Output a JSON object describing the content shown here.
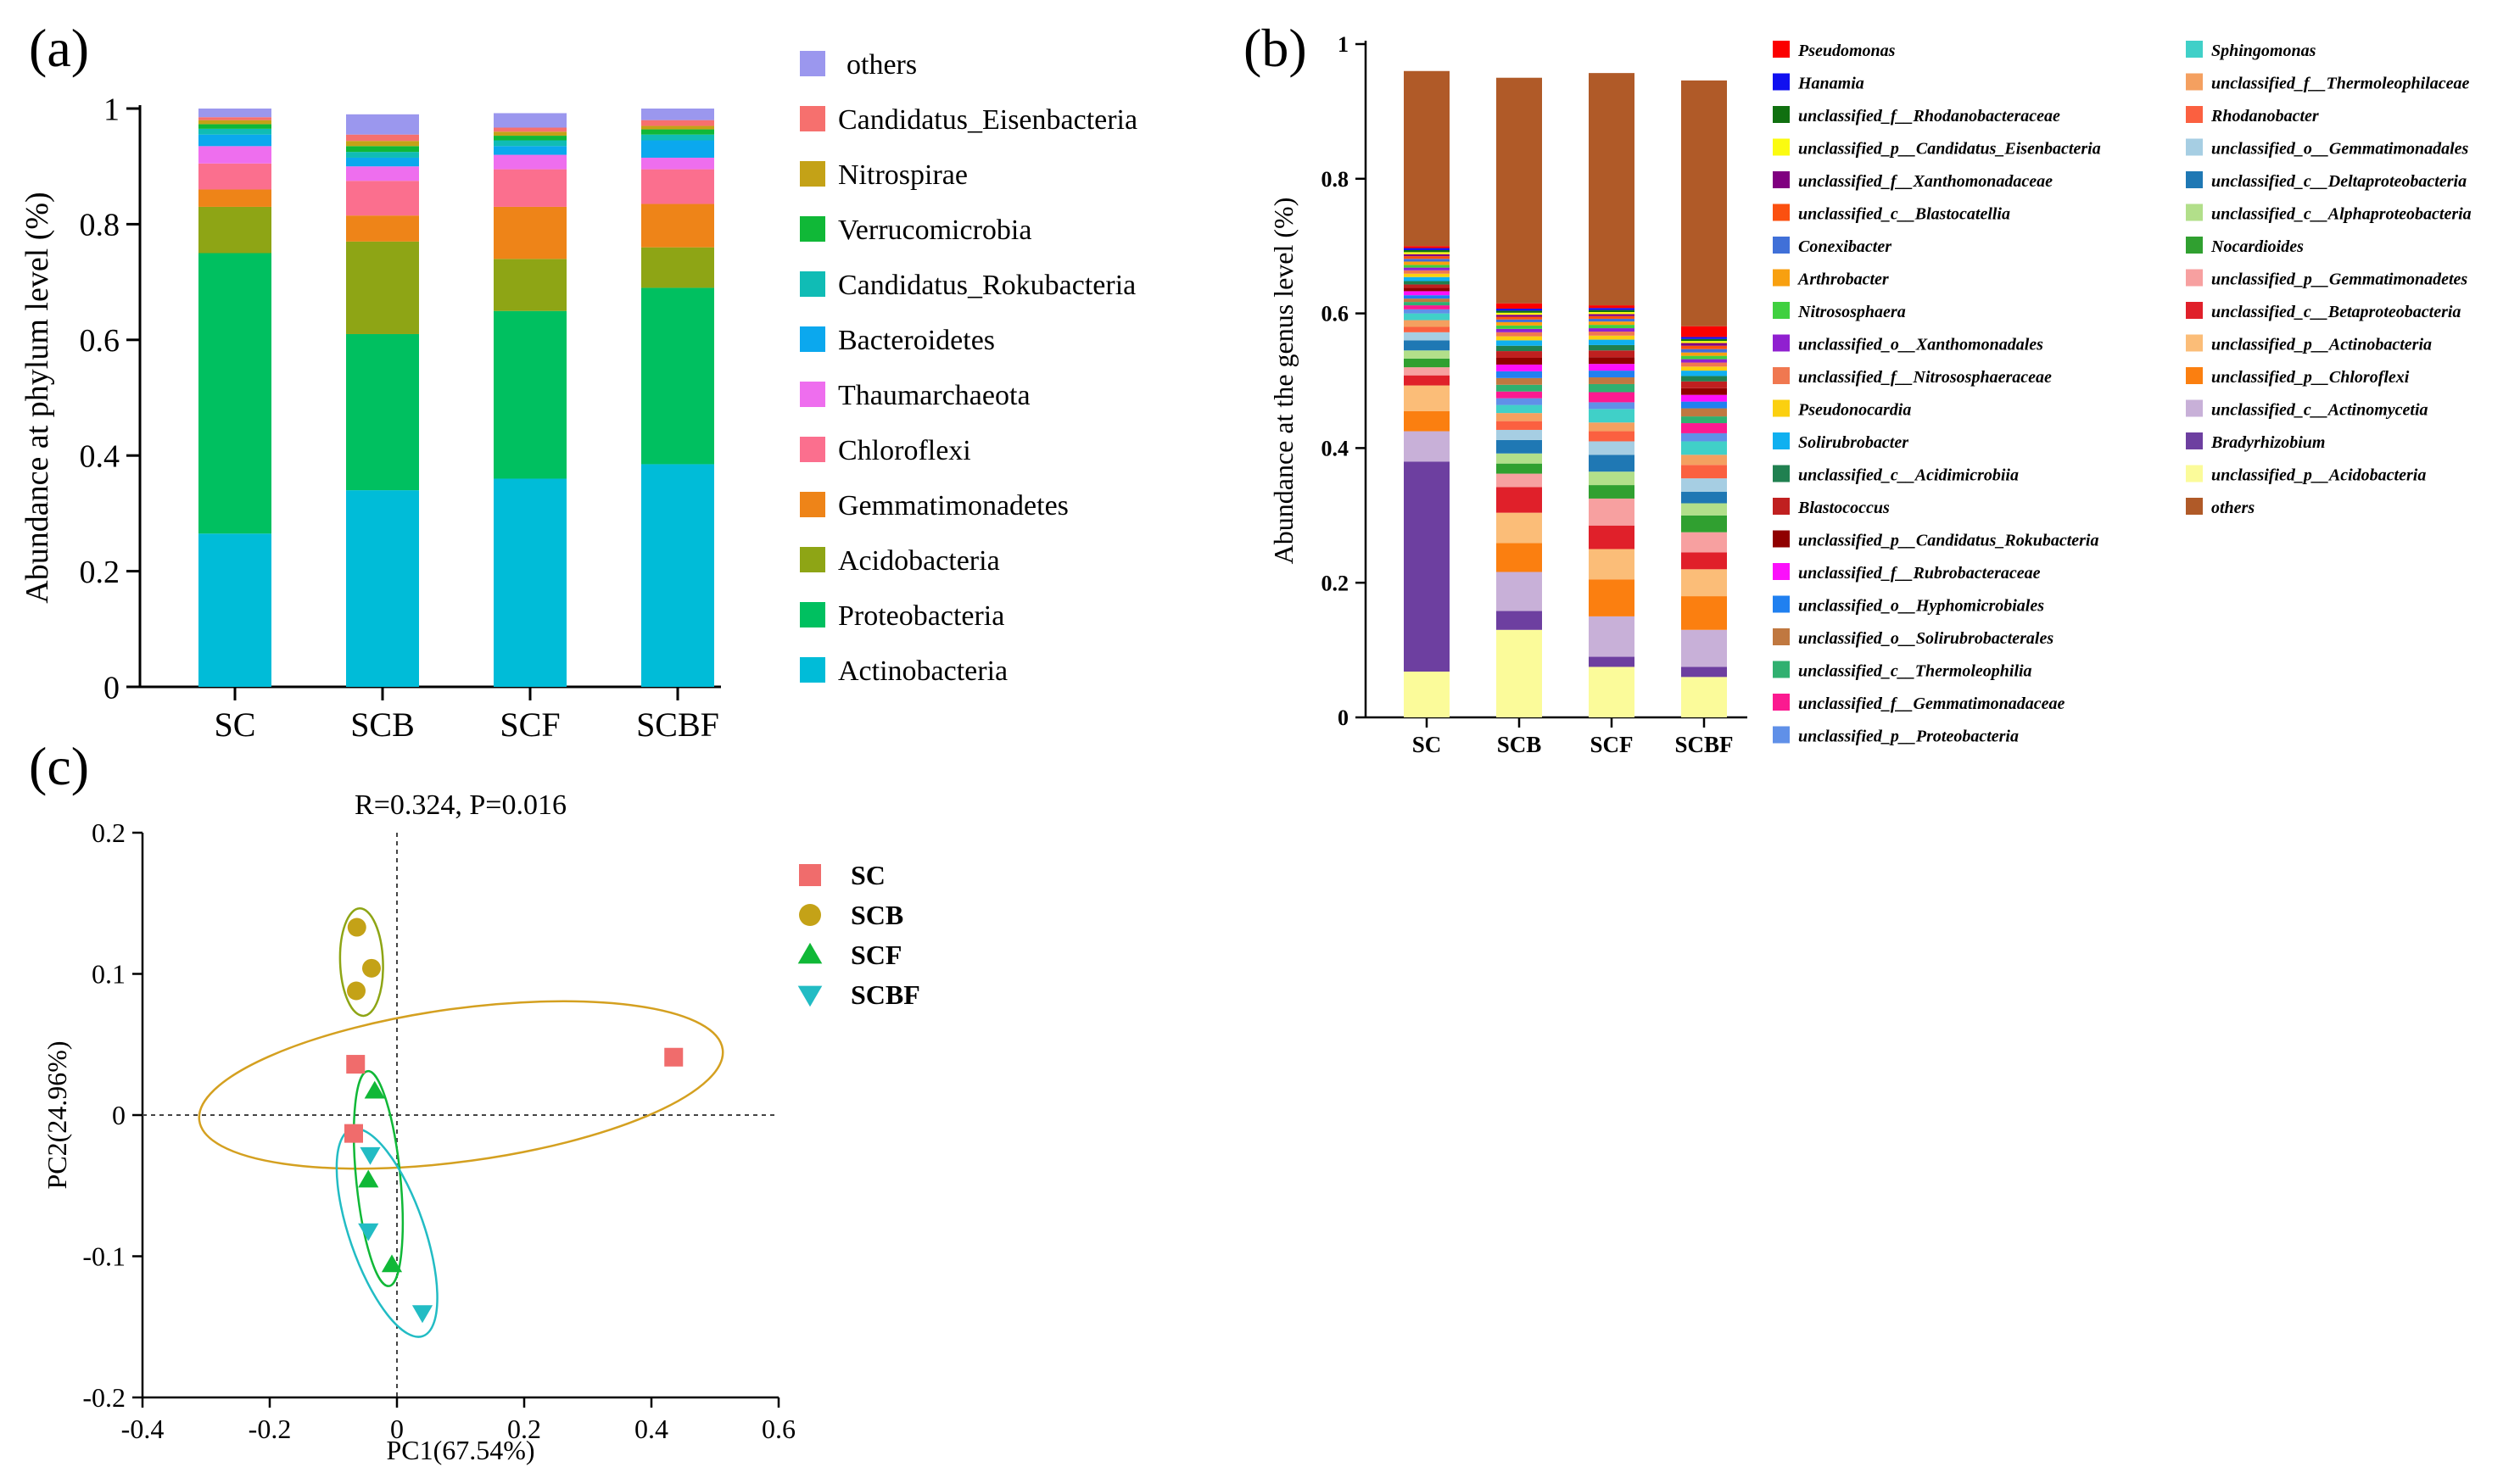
{
  "panel_labels": {
    "a": "(a)",
    "b": "(b)",
    "c": "(c)"
  },
  "chart_data": [
    {
      "id": "a",
      "type": "bar",
      "stacked": true,
      "ylabel": "Abundance at phylum level (%)",
      "xlabel": "",
      "ylim": [
        0,
        1
      ],
      "yticks": [
        "0",
        "0.2",
        "0.4",
        "0.6",
        "0.8",
        "1"
      ],
      "categories": [
        "SC",
        "SCB",
        "SCF",
        "SCBF"
      ],
      "legend_placement": "right",
      "series": [
        {
          "name": "Actinobacteria",
          "color": "#00bcd8",
          "values": [
            0.265,
            0.34,
            0.36,
            0.385
          ]
        },
        {
          "name": "Proteobacteria",
          "color": "#00c060",
          "values": [
            0.485,
            0.27,
            0.29,
            0.305
          ]
        },
        {
          "name": "Acidobacteria",
          "color": "#8ea515",
          "values": [
            0.08,
            0.16,
            0.09,
            0.07
          ]
        },
        {
          "name": "Gemmatimonadetes",
          "color": "#ee8418",
          "values": [
            0.03,
            0.045,
            0.09,
            0.075
          ]
        },
        {
          "name": "Chloroflexi",
          "color": "#fb6f8e",
          "values": [
            0.045,
            0.06,
            0.065,
            0.06
          ]
        },
        {
          "name": "Thaumarchaeota",
          "color": "#ee6eee",
          "values": [
            0.03,
            0.025,
            0.025,
            0.02
          ]
        },
        {
          "name": "Bacteroidetes",
          "color": "#0ba8ee",
          "values": [
            0.02,
            0.015,
            0.015,
            0.03
          ]
        },
        {
          "name": "Candidatus_Rokubacteria",
          "color": "#10bcb5",
          "values": [
            0.01,
            0.01,
            0.01,
            0.01
          ]
        },
        {
          "name": "Verrucomicrobia",
          "color": "#10b837",
          "values": [
            0.008,
            0.01,
            0.008,
            0.009
          ]
        },
        {
          "name": "Nitrospirae",
          "color": "#c4a217",
          "values": [
            0.007,
            0.009,
            0.007,
            0.006
          ]
        },
        {
          "name": "Candidatus_Eisenbacteria",
          "color": "#f6706e",
          "values": [
            0.005,
            0.011,
            0.007,
            0.01
          ]
        },
        {
          "name": "others",
          "color": "#9b97ee",
          "values": [
            0.015,
            0.035,
            0.025,
            0.02
          ]
        }
      ]
    },
    {
      "id": "b",
      "type": "bar",
      "stacked": true,
      "ylabel": "Abundance at the genus level (%)",
      "xlabel": "",
      "ylim": [
        0,
        1
      ],
      "yticks": [
        "0",
        "0.2",
        "0.4",
        "0.6",
        "0.8",
        "1"
      ],
      "categories": [
        "SC",
        "SCB",
        "SCF",
        "SCBF"
      ],
      "legend_placement": "right",
      "series": [
        {
          "name": "unclassified_p__Acidobacteria",
          "color": "#fbfb9a",
          "values": [
            0.068,
            0.13,
            0.075,
            0.06
          ]
        },
        {
          "name": "Bradyrhizobium",
          "color": "#6d3fa0",
          "values": [
            0.312,
            0.028,
            0.015,
            0.015
          ]
        },
        {
          "name": "unclassified_c__Actinomycetia",
          "color": "#c8b0d8",
          "values": [
            0.045,
            0.058,
            0.06,
            0.055
          ]
        },
        {
          "name": "unclassified_p__Chloroflexi",
          "color": "#fb7f10",
          "values": [
            0.03,
            0.043,
            0.055,
            0.05
          ]
        },
        {
          "name": "unclassified_p__Actinobacteria",
          "color": "#fbbd78",
          "values": [
            0.038,
            0.045,
            0.045,
            0.04
          ]
        },
        {
          "name": "unclassified_c__Betaproteobacteria",
          "color": "#e0202a",
          "values": [
            0.015,
            0.038,
            0.035,
            0.025
          ]
        },
        {
          "name": "unclassified_p__Gemmatimonadetes",
          "color": "#f7a0a0",
          "values": [
            0.012,
            0.02,
            0.04,
            0.03
          ]
        },
        {
          "name": "Nocardioides",
          "color": "#30a030",
          "values": [
            0.013,
            0.015,
            0.02,
            0.025
          ]
        },
        {
          "name": "unclassified_c__Alphaproteobacteria",
          "color": "#b2df8a",
          "values": [
            0.012,
            0.015,
            0.02,
            0.018
          ]
        },
        {
          "name": "unclassified_c__Deltaproteobacteria",
          "color": "#1f78b4",
          "values": [
            0.015,
            0.02,
            0.025,
            0.017
          ]
        },
        {
          "name": "unclassified_o__Gemmatimonadales",
          "color": "#a6cee3",
          "values": [
            0.012,
            0.015,
            0.02,
            0.02
          ]
        },
        {
          "name": "Rhodanobacter",
          "color": "#fb6040",
          "values": [
            0.008,
            0.013,
            0.015,
            0.02
          ]
        },
        {
          "name": "unclassified_f__Thermoleophilaceae",
          "color": "#f4a060",
          "values": [
            0.01,
            0.012,
            0.013,
            0.015
          ]
        },
        {
          "name": "Sphingomonas",
          "color": "#40d0c8",
          "values": [
            0.01,
            0.012,
            0.02,
            0.02
          ]
        },
        {
          "name": "unclassified_p__Proteobacteria",
          "color": "#6090e8",
          "values": [
            0.006,
            0.01,
            0.01,
            0.012
          ]
        },
        {
          "name": "unclassified_f__Gemmatimonadaceae",
          "color": "#fb1a90",
          "values": [
            0.006,
            0.01,
            0.015,
            0.015
          ]
        },
        {
          "name": "unclassified_c__Thermoleophilia",
          "color": "#30b070",
          "values": [
            0.005,
            0.01,
            0.012,
            0.01
          ]
        },
        {
          "name": "unclassified_o__Solirubrobacterales",
          "color": "#c07840",
          "values": [
            0.005,
            0.01,
            0.01,
            0.012
          ]
        },
        {
          "name": "unclassified_o__Hyphomicrobiales",
          "color": "#2080f0",
          "values": [
            0.005,
            0.01,
            0.01,
            0.01
          ]
        },
        {
          "name": "unclassified_f__Rubrobacteraceae",
          "color": "#fb10fb",
          "values": [
            0.006,
            0.01,
            0.01,
            0.01
          ]
        },
        {
          "name": "unclassified_p__Candidatus_Rokubacteria",
          "color": "#900000",
          "values": [
            0.005,
            0.01,
            0.01,
            0.01
          ]
        },
        {
          "name": "Blastococcus",
          "color": "#c02020",
          "values": [
            0.005,
            0.01,
            0.01,
            0.01
          ]
        },
        {
          "name": "unclassified_c__Acidimicrobiia",
          "color": "#208050",
          "values": [
            0.005,
            0.008,
            0.008,
            0.008
          ]
        },
        {
          "name": "Solirubrobacter",
          "color": "#10b0f0",
          "values": [
            0.006,
            0.008,
            0.008,
            0.008
          ]
        },
        {
          "name": "Pseudonocardia",
          "color": "#fbd010",
          "values": [
            0.005,
            0.006,
            0.006,
            0.006
          ]
        },
        {
          "name": "unclassified_f__Nitrososphaeraceae",
          "color": "#f07850",
          "values": [
            0.005,
            0.006,
            0.006,
            0.006
          ]
        },
        {
          "name": "unclassified_o__Xanthomonadales",
          "color": "#9020d0",
          "values": [
            0.004,
            0.005,
            0.005,
            0.005
          ]
        },
        {
          "name": "Nitrososphaera",
          "color": "#40d040",
          "values": [
            0.004,
            0.005,
            0.005,
            0.005
          ]
        },
        {
          "name": "Arthrobacter",
          "color": "#f8a010",
          "values": [
            0.005,
            0.005,
            0.005,
            0.005
          ]
        },
        {
          "name": "Conexibacter",
          "color": "#4070d8",
          "values": [
            0.004,
            0.004,
            0.004,
            0.005
          ]
        },
        {
          "name": "unclassified_c__Blastocatellia",
          "color": "#fb5010",
          "values": [
            0.004,
            0.004,
            0.004,
            0.005
          ]
        },
        {
          "name": "unclassified_f__Xanthomonadaceae",
          "color": "#800080",
          "values": [
            0.003,
            0.003,
            0.003,
            0.004
          ]
        },
        {
          "name": "unclassified_p__Candidatus_Eisenbacteria",
          "color": "#fbfb10",
          "values": [
            0.003,
            0.003,
            0.003,
            0.003
          ]
        },
        {
          "name": "unclassified_f__Rhodanobacteraceae",
          "color": "#107010",
          "values": [
            0.003,
            0.003,
            0.003,
            0.003
          ]
        },
        {
          "name": "Hanamia",
          "color": "#1010f0",
          "values": [
            0.003,
            0.003,
            0.003,
            0.003
          ]
        },
        {
          "name": "Pseudomonas",
          "color": "#fb0000",
          "values": [
            0.003,
            0.008,
            0.004,
            0.016
          ]
        },
        {
          "name": "others",
          "color": "#b05a28",
          "values": [
            0.26,
            0.335,
            0.345,
            0.365
          ]
        }
      ]
    },
    {
      "id": "c",
      "type": "scatter",
      "title": "R=0.324, P=0.016",
      "xlabel": "PC1(67.54%)",
      "ylabel": "PC2(24.96%)",
      "xlim": [
        -0.4,
        0.6
      ],
      "ylim": [
        -0.2,
        0.2
      ],
      "xticks": [
        "-0.4",
        "-0.2",
        "0",
        "0.2",
        "0.4",
        "0.6"
      ],
      "yticks": [
        "-0.2",
        "-0.1",
        "0",
        "0.1",
        "0.2"
      ],
      "legend_placement": "right",
      "series": [
        {
          "name": "SC",
          "color": "#f06c6c",
          "marker": "square",
          "x": [
            -0.065,
            -0.068,
            0.435
          ],
          "y": [
            0.036,
            -0.013,
            0.041
          ]
        },
        {
          "name": "SCB",
          "color": "#c4a217",
          "marker": "circle",
          "x": [
            -0.063,
            -0.064,
            -0.04
          ],
          "y": [
            0.133,
            0.088,
            0.104
          ]
        },
        {
          "name": "SCF",
          "color": "#10b837",
          "marker": "triangle",
          "x": [
            -0.035,
            -0.045,
            -0.008
          ],
          "y": [
            0.017,
            -0.046,
            -0.106
          ]
        },
        {
          "name": "SCBF",
          "color": "#22bcc4",
          "marker": "triangle-down",
          "x": [
            -0.042,
            -0.045,
            0.04
          ],
          "y": [
            -0.028,
            -0.082,
            -0.14
          ]
        }
      ],
      "ellipses": [
        {
          "series": "SC",
          "color": "#d4a020"
        },
        {
          "series": "SCB",
          "color": "#8ea515"
        },
        {
          "series": "SCF",
          "color": "#10b837"
        },
        {
          "series": "SCBF",
          "color": "#22bcc4"
        }
      ]
    }
  ]
}
